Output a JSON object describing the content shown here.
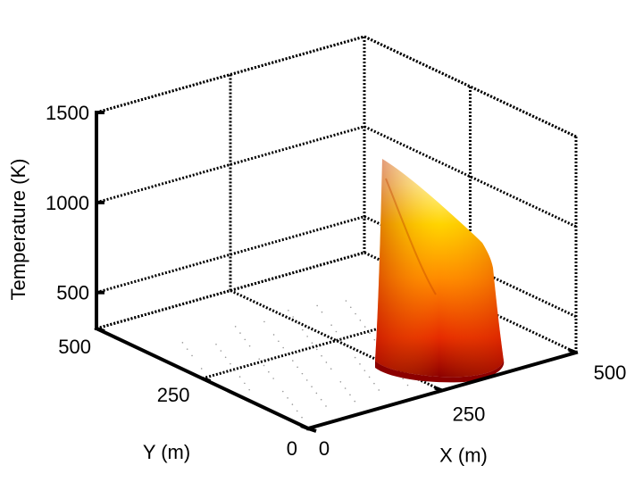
{
  "chart_data": {
    "type": "surface",
    "title": "",
    "xlabel": "X (m)",
    "ylabel": "Y (m)",
    "zlabel": "Temperature (K)",
    "xlim": [
      0,
      500
    ],
    "ylim": [
      0,
      500
    ],
    "zlim": [
      300,
      1500
    ],
    "x_ticks": [
      0,
      250,
      500
    ],
    "y_ticks": [
      0,
      250,
      500
    ],
    "z_ticks": [
      500,
      1000,
      1500
    ],
    "grid": true,
    "colormap": "hot",
    "colors": {
      "peak": "#fffde0",
      "mid": "#ffd400",
      "low": "#e62a00",
      "base": "#8c0000"
    },
    "series": [
      {
        "points": [
          {
            "x": 300,
            "y": 240,
            "z": 1380
          },
          {
            "x": 340,
            "y": 220,
            "z": 1100
          },
          {
            "x": 380,
            "y": 195,
            "z": 720
          },
          {
            "x": 300,
            "y": 180,
            "z": 900
          },
          {
            "x": 260,
            "y": 230,
            "z": 800
          }
        ]
      }
    ]
  }
}
